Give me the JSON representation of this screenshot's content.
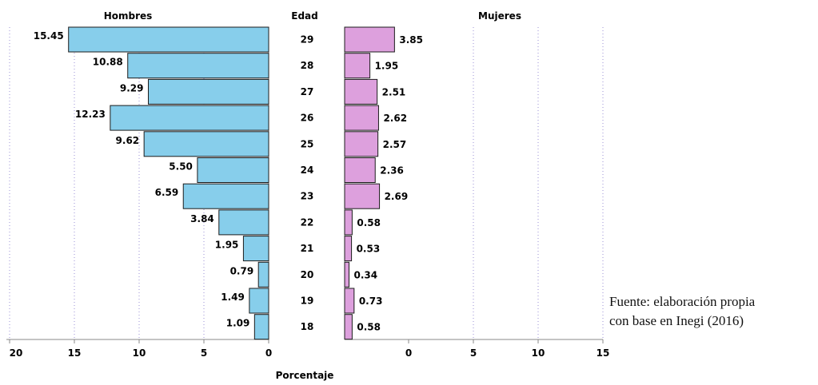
{
  "chart_data": {
    "type": "bar",
    "subtype": "population-pyramid",
    "title": "",
    "headers": {
      "left": "Hombres",
      "center": "Edad",
      "right": "Mujeres"
    },
    "xlabel": "Porcentaje",
    "categories": [
      "29",
      "28",
      "27",
      "26",
      "25",
      "24",
      "23",
      "22",
      "21",
      "20",
      "19",
      "18"
    ],
    "series": [
      {
        "name": "Hombres",
        "color": "#87CEEB",
        "value_labels": [
          "15.45",
          "10.88",
          "9.29",
          "12.23",
          "9.62",
          "5.50",
          "6.59",
          "3.84",
          "1.95",
          "0.79",
          "1.49",
          "1.09"
        ],
        "values": [
          15.45,
          10.88,
          9.29,
          12.23,
          9.62,
          5.5,
          6.59,
          3.84,
          1.95,
          0.79,
          1.49,
          1.09
        ]
      },
      {
        "name": "Mujeres",
        "color": "#DDA0DD",
        "value_labels": [
          "3.85",
          "1.95",
          "2.51",
          "2.62",
          "2.57",
          "2.36",
          "2.69",
          "0.58",
          "0.53",
          "0.34",
          "0.73",
          "0.58"
        ],
        "values": [
          3.85,
          1.95,
          2.51,
          2.62,
          2.57,
          2.36,
          2.69,
          0.58,
          0.53,
          0.34,
          0.73,
          0.58
        ]
      }
    ],
    "left_axis": {
      "ticks": [
        20,
        15,
        10,
        5,
        0
      ],
      "tick_labels": [
        "20",
        "15",
        "10",
        "5",
        "0"
      ]
    },
    "right_axis": {
      "ticks": [
        0,
        5,
        10,
        15
      ],
      "tick_labels": [
        "0",
        "5",
        "10",
        "15"
      ]
    },
    "grid": true,
    "grid_color": "#9a8fd6",
    "bar_edge_color": "#1c1c1c"
  },
  "source": {
    "line1": "Fuente: elaboración propia",
    "line2": "con base en Inegi (2016)"
  }
}
